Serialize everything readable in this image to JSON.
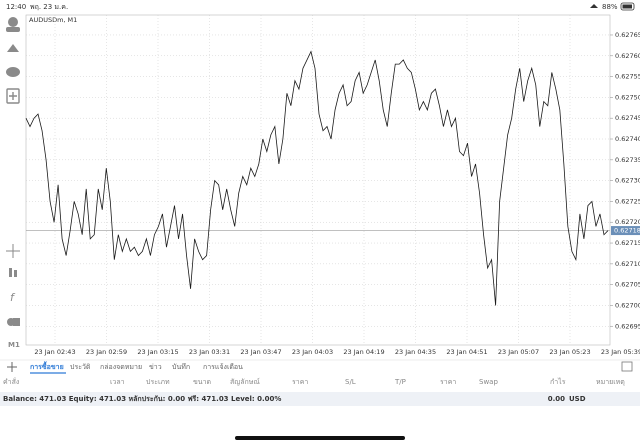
{
  "status_bar": {
    "time": "12:40",
    "date": "พฤ. 23 ม.ค.",
    "battery": "88%"
  },
  "chart": {
    "type": "line",
    "symbol": "AUDUSDm, M1",
    "color": "#1a1a1a",
    "values": [
      0.62745,
      0.62743,
      0.62745,
      0.62746,
      0.62742,
      0.62735,
      0.62725,
      0.6272,
      0.62729,
      0.62716,
      0.62712,
      0.62718,
      0.62725,
      0.62722,
      0.62717,
      0.62728,
      0.62716,
      0.62717,
      0.62728,
      0.62723,
      0.62733,
      0.62725,
      0.62711,
      0.62717,
      0.62713,
      0.62716,
      0.62713,
      0.62714,
      0.62712,
      0.62713,
      0.62716,
      0.62712,
      0.62717,
      0.62719,
      0.62722,
      0.62714,
      0.62719,
      0.62724,
      0.62716,
      0.62722,
      0.62712,
      0.62704,
      0.62716,
      0.62713,
      0.62711,
      0.62712,
      0.62723,
      0.6273,
      0.62729,
      0.62723,
      0.62728,
      0.62723,
      0.62719,
      0.62727,
      0.62731,
      0.62729,
      0.62733,
      0.62731,
      0.62734,
      0.6274,
      0.62737,
      0.62741,
      0.62743,
      0.62734,
      0.6274,
      0.62751,
      0.62748,
      0.62754,
      0.62752,
      0.62757,
      0.62759,
      0.62761,
      0.62757,
      0.62746,
      0.62742,
      0.62743,
      0.6274,
      0.62747,
      0.62751,
      0.62753,
      0.62748,
      0.62749,
      0.62754,
      0.62756,
      0.62751,
      0.62753,
      0.62756,
      0.62759,
      0.62754,
      0.62747,
      0.62743,
      0.62751,
      0.62758,
      0.62758,
      0.62759,
      0.62757,
      0.62756,
      0.62752,
      0.62747,
      0.62749,
      0.62747,
      0.62751,
      0.62752,
      0.62748,
      0.62743,
      0.62747,
      0.62743,
      0.62745,
      0.62737,
      0.62736,
      0.62739,
      0.62731,
      0.62734,
      0.62727,
      0.62717,
      0.62709,
      0.62711,
      0.627,
      0.62725,
      0.62733,
      0.62741,
      0.62745,
      0.62752,
      0.62757,
      0.62749,
      0.62754,
      0.62757,
      0.62753,
      0.62743,
      0.62749,
      0.62748,
      0.62756,
      0.62752,
      0.62747,
      0.62734,
      0.62719,
      0.62713,
      0.62711,
      0.62722,
      0.62716,
      0.62724,
      0.62725,
      0.62719,
      0.62722,
      0.62717,
      0.62718
    ],
    "ylim": [
      0.626905,
      0.627698
    ],
    "yticks": [
      0.62765,
      {
        "value": 0.6276,
        "label": "0.62760"
      },
      0.62755,
      {
        "value": 0.6275,
        "label": "0.62750"
      },
      0.62745,
      {
        "value": 0.6274,
        "label": "0.62740"
      },
      0.62735,
      {
        "value": 0.6273,
        "label": "0.62730"
      },
      0.62725,
      {
        "value": 0.6272,
        "label": "0.62720"
      },
      0.62715,
      {
        "value": 0.6271,
        "label": "0.62710"
      },
      0.62705,
      {
        "value": 0.627,
        "label": "0.62700"
      },
      0.62695
    ],
    "current_price": 0.62718,
    "time_labels": [
      "23 Jan 02:43",
      "23 Jan 02:59",
      "23 Jan 03:15",
      "23 Jan 03:31",
      "23 Jan 03:47",
      "23 Jan 04:03",
      "23 Jan 04:19",
      "23 Jan 04:35",
      "23 Jan 04:51",
      "23 Jan 05:07",
      "23 Jan 05:23",
      "23 Jan 05:39"
    ],
    "grid": true
  },
  "toolbar": {
    "timeframe": "M1"
  },
  "tabs": [
    "การซื้อขาย",
    "ประวัติ",
    "กล่องจดหมาย",
    "ข่าว",
    "บันทึก",
    "การแจ้งเตือน"
  ],
  "columns": [
    "คำสั่ง",
    "เวลา",
    "ประเภท",
    "ขนาด",
    "สัญลักษณ์",
    "ราคา",
    "S/L",
    "T/P",
    "ราคา",
    "Swap",
    "กำไร",
    "หมายเหตุ"
  ],
  "balance": {
    "summary": "Balance: 471.03 Equity: 471.03 หลักประกัน: 0.00 ฟรี: 471.03 Level: 0.00%",
    "profit": "0.00",
    "currency": "USD"
  }
}
